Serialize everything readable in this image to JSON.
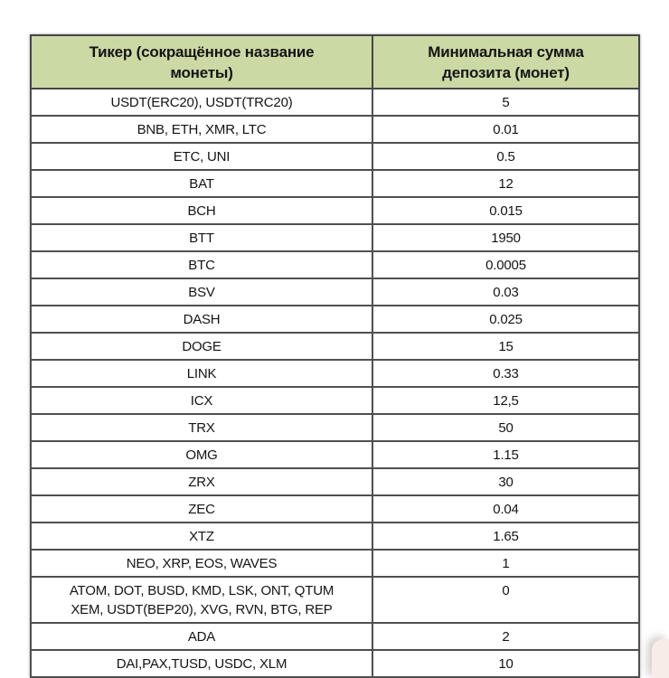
{
  "table": {
    "header_bg": "#cbd9a4",
    "border_color": "#4f4f4f",
    "headers": [
      "Тикер (сокращённое название\nмонеты)",
      "Минимальная сумма\nдепозита (монет)"
    ],
    "rows": [
      [
        "USDT(ERC20), USDT(TRC20)",
        "5"
      ],
      [
        "BNB, ETH, XMR, LTC",
        "0.01"
      ],
      [
        "ETC, UNI",
        "0.5"
      ],
      [
        "BAT",
        "12"
      ],
      [
        "BCH",
        "0.015"
      ],
      [
        "BTT",
        "1950"
      ],
      [
        "BTC",
        "0.0005"
      ],
      [
        "BSV",
        "0.03"
      ],
      [
        "DASH",
        "0.025"
      ],
      [
        "DOGE",
        "15"
      ],
      [
        "LINK",
        "0.33"
      ],
      [
        "ICX",
        "12,5"
      ],
      [
        "TRX",
        "50"
      ],
      [
        "OMG",
        "1.15"
      ],
      [
        "ZRX",
        "30"
      ],
      [
        "ZEC",
        "0.04"
      ],
      [
        "XTZ",
        "1.65"
      ],
      [
        "NEO, XRP, EOS, WAVES",
        "1"
      ],
      [
        "ATOM, DOT, BUSD, KMD, LSK, ONT, QTUM\nXEM, USDT(BEP20), XVG, RVN, BTG, REP",
        "0"
      ],
      [
        "ADA",
        "2"
      ],
      [
        "DAI,PAX,TUSD, USDC, XLM",
        "10"
      ]
    ]
  },
  "overlay": {
    "corner_widget_color": "#f7ece7"
  }
}
